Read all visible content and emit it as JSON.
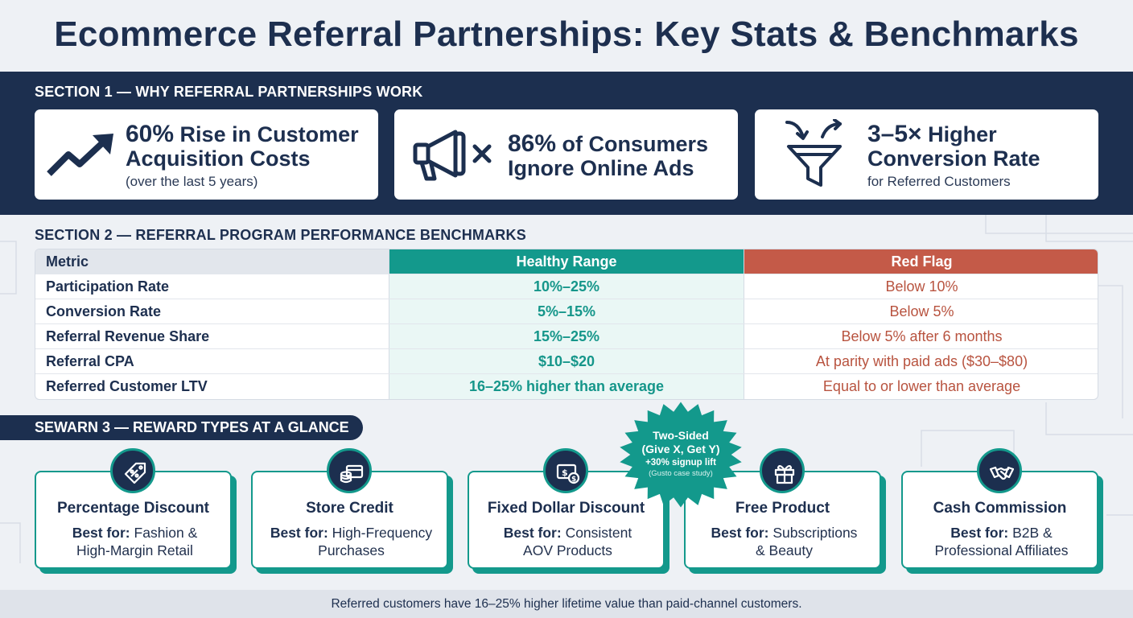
{
  "title": "Ecommerce Referral Partnerships: Key Stats & Benchmarks",
  "section1": {
    "label": "SECTION 1 — WHY REFERRAL PARTNERSHIPS WORK",
    "stats": [
      {
        "num": "60%",
        "rest1": " Rise in Customer",
        "line2": "Acquisition Costs",
        "sub": "(over the last 5 years)",
        "icon": "trend-up-icon"
      },
      {
        "num": "86%",
        "rest1": " of Consumers",
        "line2": "Ignore Online Ads",
        "sub": "",
        "icon": "megaphone-x-icon"
      },
      {
        "num": "3–5×",
        "rest1": " Higher",
        "line2": "Conversion Rate",
        "sub": "for Referred Customers",
        "icon": "funnel-icon"
      }
    ]
  },
  "section2": {
    "label": "SECTION 2 — REFERRAL PROGRAM PERFORMANCE BENCHMARKS",
    "headers": {
      "metric": "Metric",
      "healthy": "Healthy Range",
      "red": "Red Flag"
    },
    "rows": [
      {
        "metric": "Participation Rate",
        "healthy": "10%–25%",
        "red": "Below 10%"
      },
      {
        "metric": "Conversion Rate",
        "healthy": "5%–15%",
        "red": "Below 5%"
      },
      {
        "metric": "Referral Revenue Share",
        "healthy": "15%–25%",
        "red": "Below 5% after 6 months"
      },
      {
        "metric": "Referral CPA",
        "healthy": "$10–$20",
        "red": "At parity with paid ads ($30–$80)"
      },
      {
        "metric": "Referred Customer LTV",
        "healthy": "16–25% higher than average",
        "red": "Equal to or lower than average"
      }
    ]
  },
  "section3": {
    "label": "SEWARN 3 — REWARD TYPES AT A GLANCE",
    "best_for": "Best for:",
    "rewards": [
      {
        "title": "Percentage Discount",
        "line1": "Fashion &",
        "line2": "High-Margin Retail",
        "icon": "percent-tag-icon"
      },
      {
        "title": "Store Credit",
        "line1": "High-Frequency",
        "line2": "Purchases",
        "icon": "credit-card-icon"
      },
      {
        "title": "Fixed Dollar Discount",
        "line1": "Consistent",
        "line2": "AOV Products",
        "icon": "dollar-bill-icon"
      },
      {
        "title": "Free Product",
        "line1": "Subscriptions",
        "line2": "& Beauty",
        "icon": "gift-icon"
      },
      {
        "title": "Cash Commission",
        "line1": "B2B &",
        "line2": "Professional Affiliates",
        "icon": "handshake-icon"
      }
    ],
    "burst": {
      "line1": "Two-Sided",
      "line2": "(Give X, Get Y)",
      "line3": "+30% signup lift",
      "line4": "(Gusto case study)"
    }
  },
  "footer": "Referred customers have 16–25% higher lifetime value than paid-channel customers.",
  "colors": {
    "navy": "#1c2f4f",
    "teal": "#13998c",
    "red": "#c45a48"
  }
}
